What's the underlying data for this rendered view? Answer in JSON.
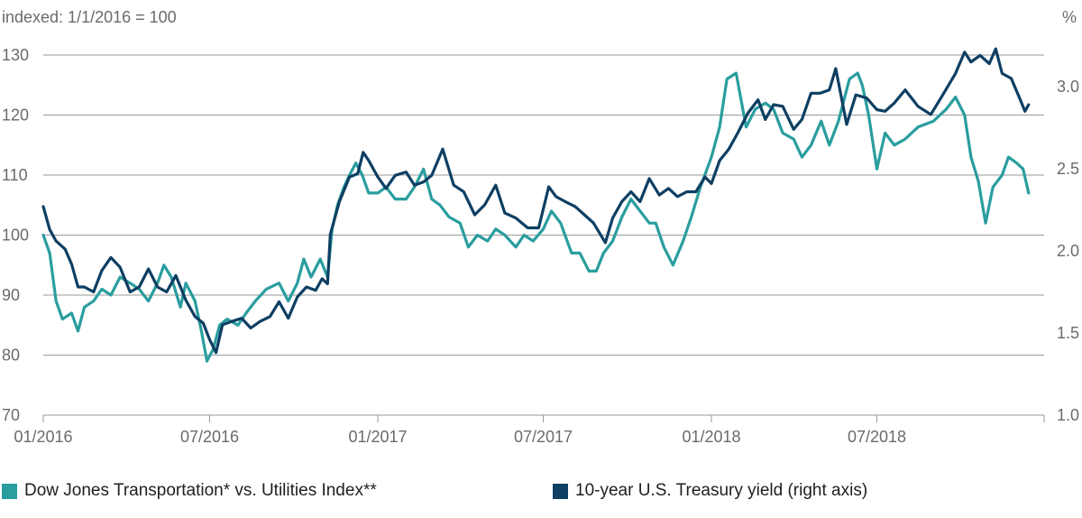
{
  "chart_data": {
    "type": "line",
    "left_axis_title": "indexed: 1/1/2016 = 100",
    "right_axis_title": "%",
    "left_ylim": [
      70,
      130
    ],
    "left_ticks": [
      "70",
      "80",
      "90",
      "100",
      "110",
      "120",
      "130"
    ],
    "right_ylim": [
      1.0,
      3.0
    ],
    "right_ticks": [
      "1.0",
      "1.5",
      "2.0",
      "2.5",
      "3.0"
    ],
    "x_ticks": [
      "01/2016",
      "07/2016",
      "01/2017",
      "07/2017",
      "01/2018",
      "07/2018"
    ],
    "x_range": [
      "2016-01-01",
      "2018-12-31"
    ],
    "grid": "horizontal",
    "legend_position": "bottom",
    "series": [
      {
        "name": "Dow Jones Transportation* vs. Utilities Index**",
        "axis": "left",
        "color": "#2a9d9f",
        "points": [
          [
            "2016-01-01",
            100
          ],
          [
            "2016-01-08",
            97
          ],
          [
            "2016-01-15",
            89
          ],
          [
            "2016-01-22",
            86
          ],
          [
            "2016-02-01",
            87
          ],
          [
            "2016-02-08",
            84
          ],
          [
            "2016-02-15",
            88
          ],
          [
            "2016-02-25",
            89
          ],
          [
            "2016-03-05",
            91
          ],
          [
            "2016-03-15",
            90
          ],
          [
            "2016-03-25",
            93
          ],
          [
            "2016-04-05",
            92
          ],
          [
            "2016-04-15",
            91
          ],
          [
            "2016-04-25",
            89
          ],
          [
            "2016-05-05",
            92
          ],
          [
            "2016-05-12",
            95
          ],
          [
            "2016-05-20",
            93
          ],
          [
            "2016-05-30",
            88
          ],
          [
            "2016-06-05",
            92
          ],
          [
            "2016-06-15",
            89
          ],
          [
            "2016-06-22",
            84
          ],
          [
            "2016-06-28",
            79
          ],
          [
            "2016-07-05",
            81
          ],
          [
            "2016-07-12",
            85
          ],
          [
            "2016-07-20",
            86
          ],
          [
            "2016-08-01",
            85
          ],
          [
            "2016-08-10",
            87
          ],
          [
            "2016-08-20",
            89
          ],
          [
            "2016-09-01",
            91
          ],
          [
            "2016-09-15",
            92
          ],
          [
            "2016-09-25",
            89
          ],
          [
            "2016-10-05",
            92
          ],
          [
            "2016-10-12",
            96
          ],
          [
            "2016-10-20",
            93
          ],
          [
            "2016-10-30",
            96
          ],
          [
            "2016-11-07",
            93
          ],
          [
            "2016-11-12",
            101
          ],
          [
            "2016-11-18",
            105
          ],
          [
            "2016-11-25",
            108
          ],
          [
            "2016-12-01",
            110
          ],
          [
            "2016-12-08",
            112
          ],
          [
            "2016-12-15",
            110
          ],
          [
            "2016-12-22",
            107
          ],
          [
            "2017-01-01",
            107
          ],
          [
            "2017-01-10",
            108
          ],
          [
            "2017-01-20",
            106
          ],
          [
            "2017-02-01",
            106
          ],
          [
            "2017-02-10",
            108
          ],
          [
            "2017-02-20",
            111
          ],
          [
            "2017-03-01",
            106
          ],
          [
            "2017-03-10",
            105
          ],
          [
            "2017-03-20",
            103
          ],
          [
            "2017-04-01",
            102
          ],
          [
            "2017-04-10",
            98
          ],
          [
            "2017-04-20",
            100
          ],
          [
            "2017-05-01",
            99
          ],
          [
            "2017-05-10",
            101
          ],
          [
            "2017-05-20",
            100
          ],
          [
            "2017-06-01",
            98
          ],
          [
            "2017-06-10",
            100
          ],
          [
            "2017-06-20",
            99
          ],
          [
            "2017-07-01",
            101
          ],
          [
            "2017-07-10",
            104
          ],
          [
            "2017-07-20",
            102
          ],
          [
            "2017-08-01",
            97
          ],
          [
            "2017-08-10",
            97
          ],
          [
            "2017-08-20",
            94
          ],
          [
            "2017-08-28",
            94
          ],
          [
            "2017-09-05",
            97
          ],
          [
            "2017-09-15",
            99
          ],
          [
            "2017-09-25",
            103
          ],
          [
            "2017-10-05",
            106
          ],
          [
            "2017-10-15",
            104
          ],
          [
            "2017-10-25",
            102
          ],
          [
            "2017-11-01",
            102
          ],
          [
            "2017-11-10",
            98
          ],
          [
            "2017-11-20",
            95
          ],
          [
            "2017-12-01",
            99
          ],
          [
            "2017-12-10",
            103
          ],
          [
            "2017-12-20",
            108
          ],
          [
            "2018-01-01",
            113
          ],
          [
            "2018-01-10",
            118
          ],
          [
            "2018-01-18",
            126
          ],
          [
            "2018-01-28",
            127
          ],
          [
            "2018-02-08",
            118
          ],
          [
            "2018-02-18",
            121
          ],
          [
            "2018-03-01",
            122
          ],
          [
            "2018-03-10",
            121
          ],
          [
            "2018-03-20",
            117
          ],
          [
            "2018-04-01",
            116
          ],
          [
            "2018-04-10",
            113
          ],
          [
            "2018-04-20",
            115
          ],
          [
            "2018-05-01",
            119
          ],
          [
            "2018-05-10",
            115
          ],
          [
            "2018-05-20",
            119
          ],
          [
            "2018-06-01",
            126
          ],
          [
            "2018-06-10",
            127
          ],
          [
            "2018-06-15",
            125
          ],
          [
            "2018-06-22",
            120
          ],
          [
            "2018-07-01",
            111
          ],
          [
            "2018-07-10",
            117
          ],
          [
            "2018-07-20",
            115
          ],
          [
            "2018-08-01",
            116
          ],
          [
            "2018-08-15",
            118
          ],
          [
            "2018-09-01",
            119
          ],
          [
            "2018-09-15",
            121
          ],
          [
            "2018-09-25",
            123
          ],
          [
            "2018-10-05",
            120
          ],
          [
            "2018-10-12",
            113
          ],
          [
            "2018-10-20",
            109
          ],
          [
            "2018-10-28",
            102
          ],
          [
            "2018-11-05",
            108
          ],
          [
            "2018-11-15",
            110
          ],
          [
            "2018-11-22",
            113
          ],
          [
            "2018-12-01",
            112
          ],
          [
            "2018-12-08",
            111
          ],
          [
            "2018-12-14",
            107
          ]
        ]
      },
      {
        "name": "10-year U.S. Treasury yield (right axis)",
        "axis": "right",
        "color": "#0e3f63",
        "points": [
          [
            "2016-01-01",
            2.27
          ],
          [
            "2016-01-08",
            2.13
          ],
          [
            "2016-01-15",
            2.06
          ],
          [
            "2016-01-25",
            2.01
          ],
          [
            "2016-02-01",
            1.92
          ],
          [
            "2016-02-08",
            1.78
          ],
          [
            "2016-02-15",
            1.78
          ],
          [
            "2016-02-25",
            1.75
          ],
          [
            "2016-03-05",
            1.88
          ],
          [
            "2016-03-15",
            1.96
          ],
          [
            "2016-03-25",
            1.9
          ],
          [
            "2016-04-05",
            1.75
          ],
          [
            "2016-04-15",
            1.78
          ],
          [
            "2016-04-25",
            1.89
          ],
          [
            "2016-05-05",
            1.78
          ],
          [
            "2016-05-15",
            1.75
          ],
          [
            "2016-05-25",
            1.85
          ],
          [
            "2016-06-05",
            1.7
          ],
          [
            "2016-06-15",
            1.6
          ],
          [
            "2016-06-24",
            1.56
          ],
          [
            "2016-07-01",
            1.46
          ],
          [
            "2016-07-08",
            1.38
          ],
          [
            "2016-07-15",
            1.55
          ],
          [
            "2016-07-25",
            1.57
          ],
          [
            "2016-08-05",
            1.59
          ],
          [
            "2016-08-15",
            1.53
          ],
          [
            "2016-08-25",
            1.57
          ],
          [
            "2016-09-05",
            1.6
          ],
          [
            "2016-09-15",
            1.69
          ],
          [
            "2016-09-25",
            1.59
          ],
          [
            "2016-10-05",
            1.72
          ],
          [
            "2016-10-15",
            1.78
          ],
          [
            "2016-10-25",
            1.76
          ],
          [
            "2016-11-01",
            1.83
          ],
          [
            "2016-11-07",
            1.8
          ],
          [
            "2016-11-10",
            2.1
          ],
          [
            "2016-11-20",
            2.3
          ],
          [
            "2016-12-01",
            2.45
          ],
          [
            "2016-12-10",
            2.47
          ],
          [
            "2016-12-16",
            2.6
          ],
          [
            "2016-12-22",
            2.55
          ],
          [
            "2017-01-01",
            2.45
          ],
          [
            "2017-01-10",
            2.38
          ],
          [
            "2017-01-20",
            2.46
          ],
          [
            "2017-02-01",
            2.48
          ],
          [
            "2017-02-10",
            2.4
          ],
          [
            "2017-02-20",
            2.42
          ],
          [
            "2017-03-01",
            2.46
          ],
          [
            "2017-03-13",
            2.62
          ],
          [
            "2017-03-25",
            2.4
          ],
          [
            "2017-04-05",
            2.36
          ],
          [
            "2017-04-17",
            2.22
          ],
          [
            "2017-04-28",
            2.28
          ],
          [
            "2017-05-10",
            2.4
          ],
          [
            "2017-05-20",
            2.23
          ],
          [
            "2017-06-01",
            2.2
          ],
          [
            "2017-06-14",
            2.14
          ],
          [
            "2017-06-26",
            2.14
          ],
          [
            "2017-07-07",
            2.39
          ],
          [
            "2017-07-15",
            2.33
          ],
          [
            "2017-07-25",
            2.3
          ],
          [
            "2017-08-05",
            2.27
          ],
          [
            "2017-08-15",
            2.22
          ],
          [
            "2017-08-25",
            2.17
          ],
          [
            "2017-09-07",
            2.05
          ],
          [
            "2017-09-15",
            2.2
          ],
          [
            "2017-09-25",
            2.3
          ],
          [
            "2017-10-05",
            2.36
          ],
          [
            "2017-10-15",
            2.3
          ],
          [
            "2017-10-25",
            2.44
          ],
          [
            "2017-11-05",
            2.34
          ],
          [
            "2017-11-15",
            2.38
          ],
          [
            "2017-11-25",
            2.33
          ],
          [
            "2017-12-05",
            2.36
          ],
          [
            "2017-12-15",
            2.36
          ],
          [
            "2017-12-25",
            2.45
          ],
          [
            "2018-01-01",
            2.41
          ],
          [
            "2018-01-10",
            2.55
          ],
          [
            "2018-01-20",
            2.62
          ],
          [
            "2018-01-30",
            2.72
          ],
          [
            "2018-02-10",
            2.84
          ],
          [
            "2018-02-21",
            2.92
          ],
          [
            "2018-03-01",
            2.8
          ],
          [
            "2018-03-10",
            2.89
          ],
          [
            "2018-03-20",
            2.88
          ],
          [
            "2018-04-01",
            2.74
          ],
          [
            "2018-04-10",
            2.8
          ],
          [
            "2018-04-20",
            2.96
          ],
          [
            "2018-04-30",
            2.96
          ],
          [
            "2018-05-10",
            2.98
          ],
          [
            "2018-05-17",
            3.11
          ],
          [
            "2018-05-29",
            2.77
          ],
          [
            "2018-06-08",
            2.95
          ],
          [
            "2018-06-20",
            2.93
          ],
          [
            "2018-07-01",
            2.86
          ],
          [
            "2018-07-10",
            2.85
          ],
          [
            "2018-07-20",
            2.9
          ],
          [
            "2018-08-01",
            2.98
          ],
          [
            "2018-08-15",
            2.88
          ],
          [
            "2018-08-29",
            2.83
          ],
          [
            "2018-09-10",
            2.94
          ],
          [
            "2018-09-25",
            3.08
          ],
          [
            "2018-10-05",
            3.21
          ],
          [
            "2018-10-12",
            3.15
          ],
          [
            "2018-10-22",
            3.19
          ],
          [
            "2018-11-01",
            3.14
          ],
          [
            "2018-11-08",
            3.23
          ],
          [
            "2018-11-15",
            3.08
          ],
          [
            "2018-11-25",
            3.05
          ],
          [
            "2018-12-05",
            2.92
          ],
          [
            "2018-12-10",
            2.85
          ],
          [
            "2018-12-14",
            2.89
          ]
        ]
      }
    ]
  },
  "legend": {
    "item1_label": "Dow Jones Transportation* vs. Utilities Index**",
    "item1_color": "#2a9d9f",
    "item2_label": "10-year U.S. Treasury yield (right axis)",
    "item2_color": "#0e3f63"
  }
}
